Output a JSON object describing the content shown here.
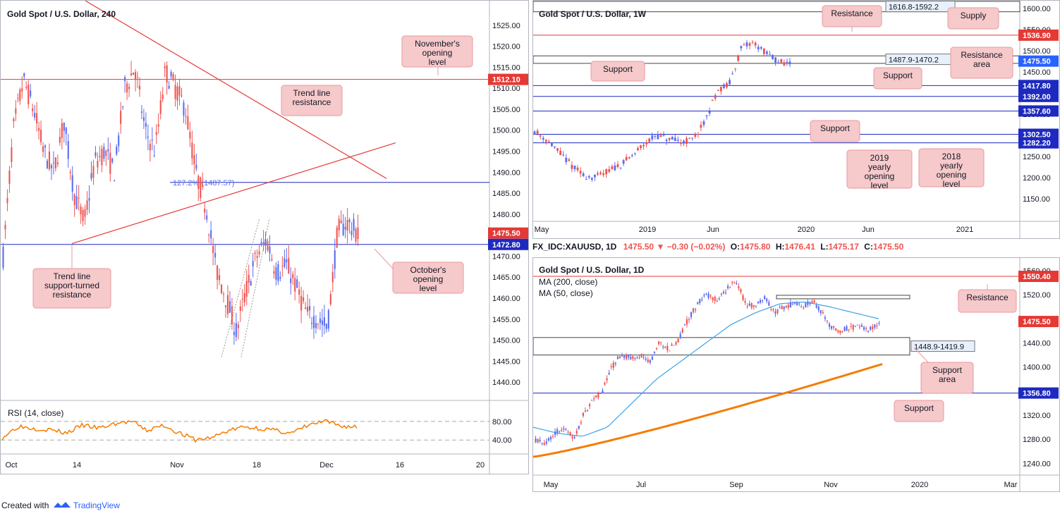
{
  "colors": {
    "up": "#5b6cf0",
    "down": "#ef5350",
    "red": "#e53935",
    "blue": "#1e2abf",
    "ma200": "#f57c00",
    "ma50": "#3ca4e6",
    "rsi": "#f57c00",
    "note_bg": "#f6c9cb",
    "note_border": "#e89a9e",
    "box_bg": "#e8f1fb"
  },
  "chart_data": [
    {
      "id": "h4",
      "type": "candlestick",
      "title": "Gold Spot / U.S. Dollar, 240",
      "ylim": [
        1436,
        1530
      ],
      "y_ticks": [
        "1440.00",
        "1445.00",
        "1450.00",
        "1455.00",
        "1460.00",
        "1465.00",
        "1470.00",
        "1475.00",
        "1480.00",
        "1485.00",
        "1490.00",
        "1495.00",
        "1500.00",
        "1505.00",
        "1510.00",
        "1515.00",
        "1520.00",
        "1525.00"
      ],
      "x_ticks": [
        "Oct",
        "14",
        "Nov",
        "18",
        "Dec",
        "16",
        "20"
      ],
      "price_badges": [
        {
          "text": "1512.10",
          "color": "#e53935"
        },
        {
          "text": "1475.50",
          "color": "#e53935"
        },
        {
          "text": "1472.80",
          "color": "#1e2abf"
        }
      ],
      "fib_label": "127.2% (1487.57)",
      "notes": {
        "november": "November's opening level",
        "trend_res": "Trend line resistance",
        "tl_support": "Trend line support-turned resistance",
        "october": "October's opening level"
      },
      "rsi": {
        "label": "RSI (14, close)",
        "ticks": [
          "80.00",
          "40.00"
        ]
      }
    },
    {
      "id": "w1",
      "type": "candlestick",
      "title": "Gold Spot / U.S. Dollar, 1W",
      "ylim": [
        1110,
        1610
      ],
      "y_ticks": [
        "1150.00",
        "1200.00",
        "1250.00",
        "1300.00",
        "1350.00",
        "1400.00",
        "1450.00",
        "1500.00",
        "1550.00",
        "1600.00"
      ],
      "x_ticks": [
        "May",
        "2019",
        "Jun",
        "2020",
        "Jun",
        "2021"
      ],
      "price_badges": [
        {
          "text": "1536.90",
          "color": "#e53935"
        },
        {
          "text": "1475.50",
          "color": "#1e2abf",
          "alt": true
        },
        {
          "text": "1417.80",
          "color": "#1e2abf"
        },
        {
          "text": "1392.00",
          "color": "#1e2abf"
        },
        {
          "text": "1357.60",
          "color": "#1e2abf"
        },
        {
          "text": "1302.50",
          "color": "#1e2abf"
        },
        {
          "text": "1282.20",
          "color": "#1e2abf"
        }
      ],
      "boxes": [
        "1616.8-1592.2",
        "1487.9-1470.2"
      ],
      "notes": {
        "resistance": "Resistance",
        "supply": "Supply",
        "resistance_area": "Resistance area",
        "support_left": "Support",
        "support_right": "Support",
        "support_mid": "Support",
        "yearly_2019": "2019 yearly opening level",
        "yearly_2018": "2018 yearly opening level"
      }
    },
    {
      "id": "d1",
      "type": "candlestick",
      "title": "Gold Spot / U.S. Dollar, 1D",
      "ylim": [
        1230,
        1575
      ],
      "y_ticks": [
        "1240.00",
        "1280.00",
        "1320.00",
        "1360.00",
        "1400.00",
        "1440.00",
        "1480.00",
        "1520.00",
        "1560.00"
      ],
      "x_ticks": [
        "May",
        "Jul",
        "Sep",
        "Nov",
        "2020",
        "Mar"
      ],
      "price_badges": [
        {
          "text": "1550.40",
          "color": "#e53935"
        },
        {
          "text": "1475.50",
          "color": "#e53935"
        },
        {
          "text": "1356.80",
          "color": "#1e2abf"
        }
      ],
      "ma": [
        "MA (200, close)",
        "MA (50, close)"
      ],
      "box": "1448.9-1419.9",
      "notes": {
        "resistance": "Resistance",
        "support_area": "Support area",
        "support": "Support"
      }
    }
  ],
  "info": {
    "symbol": "FX_IDC:XAUUSD, 1D",
    "price": "1475.50",
    "change": "−0.30 (−0.02%)",
    "o": "O:",
    "o_val": "1475.80",
    "h": "H:",
    "h_val": "1476.41",
    "l": "L:",
    "l_val": "1475.17",
    "c": "C:",
    "c_val": "1475.50"
  },
  "footer": {
    "created": "Created with",
    "brand": "TradingView"
  }
}
